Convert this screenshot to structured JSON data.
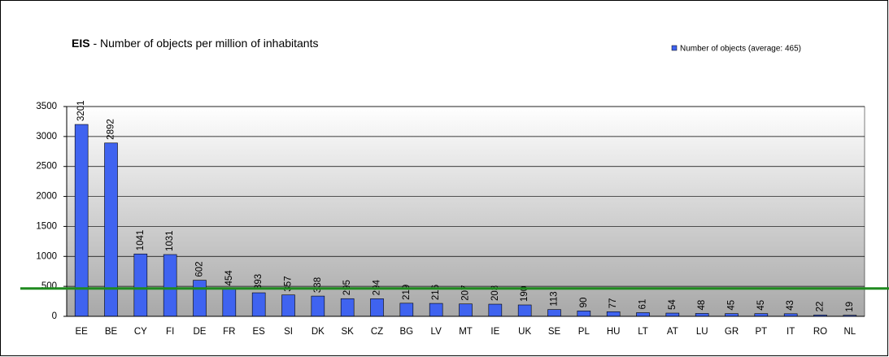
{
  "chart_data": {
    "type": "bar",
    "title": "EIS - Number of objects per million of inhabitants",
    "legend": "Number of objects (average: 465)",
    "series": [
      {
        "name": "Number of objects (average: 465)",
        "color": "#3f63f0",
        "values": [
          3201,
          2892,
          1041,
          1031,
          602,
          454,
          393,
          357,
          338,
          295,
          294,
          219,
          216,
          207,
          203,
          190,
          113,
          90,
          77,
          61,
          54,
          48,
          45,
          45,
          43,
          22,
          19
        ]
      }
    ],
    "categories": [
      "EE",
      "BE",
      "CY",
      "FI",
      "DE",
      "FR",
      "ES",
      "SI",
      "DK",
      "SK",
      "CZ",
      "BG",
      "LV",
      "MT",
      "IE",
      "UK",
      "SE",
      "PL",
      "HU",
      "LT",
      "AT",
      "LU",
      "GR",
      "PT",
      "IT",
      "RO",
      "NL"
    ],
    "ylim": [
      0,
      3500
    ],
    "yticks": [
      0,
      500,
      1000,
      1500,
      2000,
      2500,
      3000,
      3500
    ],
    "grid": true,
    "average_line": {
      "value": 465,
      "color": "#1f8a1f"
    }
  }
}
